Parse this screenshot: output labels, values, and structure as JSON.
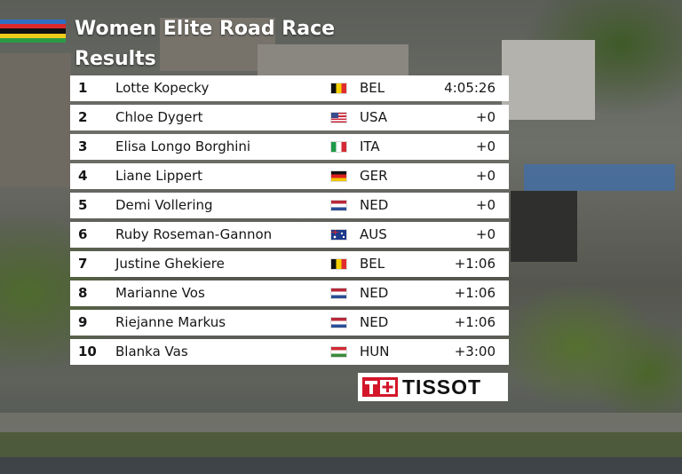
{
  "header": {
    "title": "Women Elite Road Race",
    "subtitle": "Results"
  },
  "table": {
    "rows": [
      [
        "1",
        "Lotte Kopecky",
        "BEL",
        "4:05:26"
      ],
      [
        "2",
        "Chloe Dygert",
        "USA",
        "+0"
      ],
      [
        "3",
        "Elisa Longo Borghini",
        "ITA",
        "+0"
      ],
      [
        "4",
        "Liane Lippert",
        "GER",
        "+0"
      ],
      [
        "5",
        "Demi Vollering",
        "NED",
        "+0"
      ],
      [
        "6",
        "Ruby Roseman-Gannon",
        "AUS",
        "+0"
      ],
      [
        "7",
        "Justine Ghekiere",
        "BEL",
        "+1:06"
      ],
      [
        "8",
        "Marianne Vos",
        "NED",
        "+1:06"
      ],
      [
        "9",
        "Riejanne Markus",
        "NED",
        "+1:06"
      ],
      [
        "10",
        "Blanka Vas",
        "HUN",
        "+3:00"
      ]
    ]
  },
  "sponsor": "TISSOT"
}
